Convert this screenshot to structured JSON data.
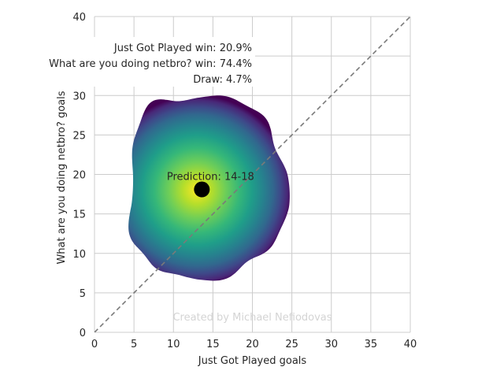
{
  "chart_data": {
    "type": "contour",
    "xlabel": "Just Got Played goals",
    "ylabel": "What are you doing netbro? goals",
    "xlim": [
      0,
      40
    ],
    "ylim": [
      0,
      40
    ],
    "xticks": [
      0,
      5,
      10,
      15,
      20,
      25,
      30,
      35,
      40
    ],
    "yticks": [
      0,
      5,
      10,
      15,
      20,
      25,
      30,
      35,
      40
    ],
    "grid": true,
    "colormap": "viridis",
    "density_center": {
      "x": 13,
      "y": 18
    },
    "density_extent": {
      "x_range": [
        4.3,
        24
      ],
      "y_range": [
        7,
        30
      ]
    },
    "prediction_point": {
      "x": 13.6,
      "y": 18.1,
      "label": "Prediction: 14-18"
    },
    "diagonal_line": {
      "from": [
        0,
        0
      ],
      "to": [
        40,
        40
      ],
      "style": "dashed",
      "color": "#7a7a7a"
    },
    "annotations": [
      {
        "text": "Just Got Played win: 20.9%"
      },
      {
        "text": "What are you doing netbro? win: 74.4%"
      },
      {
        "text": "Draw: 4.7%"
      }
    ],
    "watermark": "Created by Michael Nefiodovas"
  }
}
